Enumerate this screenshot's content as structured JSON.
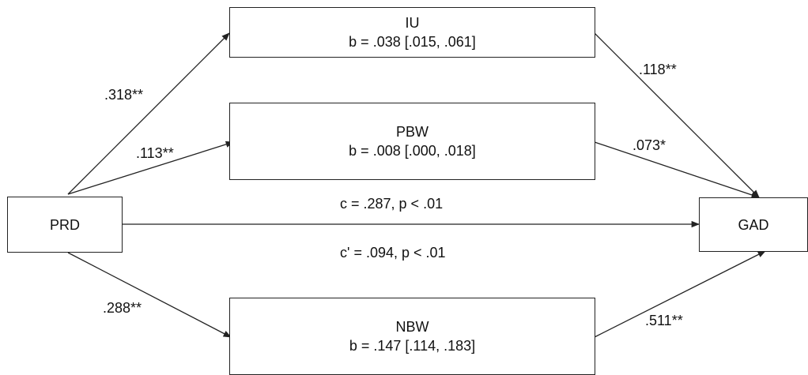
{
  "nodes": {
    "prd": {
      "name": "PRD"
    },
    "gad": {
      "name": "GAD"
    },
    "iu": {
      "name": "IU",
      "effect": "b = .038 [.015, .061]"
    },
    "pbw": {
      "name": "PBW",
      "effect": "b = .008 [.000, .018]"
    },
    "nbw": {
      "name": "NBW",
      "effect": "b = .147 [.114, .183]"
    }
  },
  "paths": {
    "prd_iu": ".318**",
    "prd_pbw": ".113**",
    "prd_nbw": ".288**",
    "iu_gad": ".118**",
    "pbw_gad": ".073*",
    "nbw_gad": ".511**",
    "total_effect": "c = .287, p < .01",
    "direct_effect": "c' = .094, p < .01"
  }
}
